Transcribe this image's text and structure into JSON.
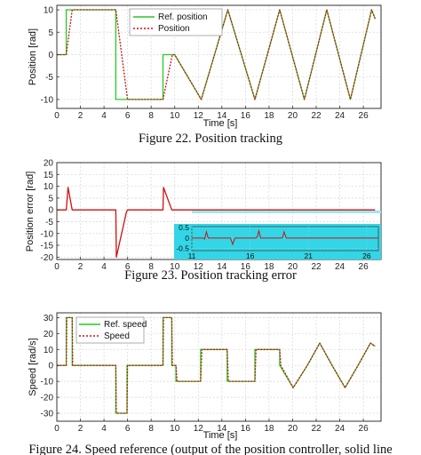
{
  "colors": {
    "reference": "#22cc22",
    "actual": "#cc1111",
    "inset_background": "#33d6e6",
    "inset_frame": "#9fe7ef",
    "grid": "#d6d6d6"
  },
  "chart_data": [
    {
      "type": "line",
      "xlabel": "Time [s]",
      "ylabel": "Position [rad]",
      "xlim": [
        0,
        27.5
      ],
      "ylim": [
        -12,
        11
      ],
      "xticks": [
        0,
        2,
        4,
        6,
        8,
        10,
        12,
        14,
        16,
        18,
        20,
        22,
        24,
        26
      ],
      "yticks": [
        10,
        5,
        0,
        -5,
        -10
      ],
      "grid": true,
      "legend_position": "top-center",
      "caption": "Figure 22.  Position tracking",
      "series": [
        {
          "name": "Ref. position",
          "style": "solid",
          "color": "reference",
          "x": [
            0,
            0.8,
            0.8,
            5.0,
            5.0,
            9.0,
            9.0,
            10.0,
            12.25,
            14.5,
            16.8,
            18.9,
            21.0,
            22.9,
            24.9,
            26.7,
            27.0
          ],
          "y": [
            0,
            0,
            10,
            10,
            -10,
            -10,
            0,
            0,
            -10,
            10,
            -10,
            10,
            -10,
            10,
            -10,
            10,
            8
          ]
        },
        {
          "name": "Position",
          "style": "dotted",
          "color": "actual",
          "x": [
            0,
            0.8,
            1.3,
            5.0,
            6.0,
            9.0,
            9.8,
            10.0,
            12.25,
            14.5,
            16.8,
            18.9,
            21.0,
            22.9,
            24.9,
            26.7,
            27.0
          ],
          "y": [
            0,
            0,
            10,
            10,
            -10,
            -10,
            0,
            0,
            -10,
            10,
            -10,
            10,
            -10,
            10,
            -10,
            10,
            8
          ]
        }
      ]
    },
    {
      "type": "line",
      "xlabel": "",
      "ylabel": "Position error [rad]",
      "xlim": [
        0,
        27.5
      ],
      "ylim": [
        -21,
        20
      ],
      "xticks": [
        0,
        2,
        4,
        6,
        8,
        10,
        12,
        14,
        16,
        18,
        20,
        22,
        24,
        26
      ],
      "yticks": [
        20,
        15,
        10,
        5,
        0,
        -5,
        -10,
        -15,
        -20
      ],
      "grid": true,
      "caption": "Figure 23.  Position tracking error",
      "series": [
        {
          "name": "",
          "color": "actual",
          "x": [
            0,
            0.8,
            0.95,
            1.3,
            5.0,
            5.05,
            5.9,
            6.0,
            9.0,
            9.05,
            9.75,
            27.0
          ],
          "y": [
            0,
            0,
            9.5,
            0,
            0,
            -20,
            -1,
            0,
            0,
            9.5,
            0,
            0
          ]
        }
      ],
      "inset": {
        "xlim": [
          11,
          27
        ],
        "ylim": [
          -0.6,
          0.55
        ],
        "xticks": [
          11,
          16,
          21,
          26
        ],
        "yticks": [
          0.5,
          0,
          -0.5
        ],
        "series_x": [
          11.0,
          12.0,
          12.1,
          12.25,
          12.4,
          14.3,
          14.35,
          14.5,
          14.7,
          16.5,
          16.6,
          16.75,
          16.9,
          18.7,
          18.8,
          18.9,
          19.1,
          27.0
        ],
        "series_y": [
          0,
          0,
          -0.05,
          0.3,
          0,
          0,
          -0.05,
          -0.3,
          0,
          0,
          0.05,
          0.35,
          0,
          0,
          0.05,
          0.3,
          0,
          0
        ]
      }
    },
    {
      "type": "line",
      "xlabel": "Time [s]",
      "ylabel": "Speed [rad/s]",
      "xlim": [
        0,
        27.5
      ],
      "ylim": [
        -35,
        33
      ],
      "xticks": [
        0,
        2,
        4,
        6,
        8,
        10,
        12,
        14,
        16,
        18,
        20,
        22,
        24,
        26
      ],
      "yticks": [
        30,
        20,
        10,
        0,
        -10,
        -20,
        -30
      ],
      "grid": true,
      "legend_position": "top-left",
      "caption": "Figure 24.  Speed reference (output of the position controller, solid line",
      "series": [
        {
          "name": "Ref. speed",
          "style": "solid",
          "color": "reference",
          "x": [
            0,
            0.8,
            0.8,
            1.3,
            1.3,
            5.0,
            5.0,
            5.95,
            5.95,
            9.0,
            9.0,
            9.75,
            9.75,
            10.1,
            10.1,
            12.2,
            12.2,
            14.45,
            14.45,
            16.8,
            16.8,
            18.9,
            18.9,
            20.05,
            21.25,
            22.3,
            23.35,
            24.45,
            25.55,
            26.6,
            27.0
          ],
          "y": [
            0,
            0,
            30,
            30,
            0,
            0,
            -30,
            -30,
            0,
            0,
            30,
            30,
            0,
            0,
            -10,
            -10,
            10,
            10,
            -10,
            -10,
            10,
            10,
            0,
            -14,
            0,
            14,
            0,
            -14,
            0,
            14,
            12
          ]
        },
        {
          "name": "Speed",
          "style": "dotted",
          "color": "actual",
          "x": [
            0,
            0.8,
            0.85,
            1.3,
            1.35,
            5.0,
            5.05,
            5.95,
            6.0,
            9.0,
            9.05,
            9.75,
            9.8,
            10.1,
            10.2,
            12.2,
            12.3,
            14.45,
            14.55,
            16.8,
            16.9,
            18.9,
            19.0,
            20.05,
            21.25,
            22.3,
            23.35,
            24.45,
            25.55,
            26.6,
            27.0
          ],
          "y": [
            0,
            0,
            30,
            30,
            0,
            0,
            -30,
            -30,
            0,
            0,
            30,
            30,
            0,
            0,
            -10,
            -10,
            10,
            10,
            -10,
            -10,
            10,
            10,
            0,
            -14,
            0,
            14,
            0,
            -14,
            0,
            14,
            12
          ]
        }
      ]
    }
  ]
}
